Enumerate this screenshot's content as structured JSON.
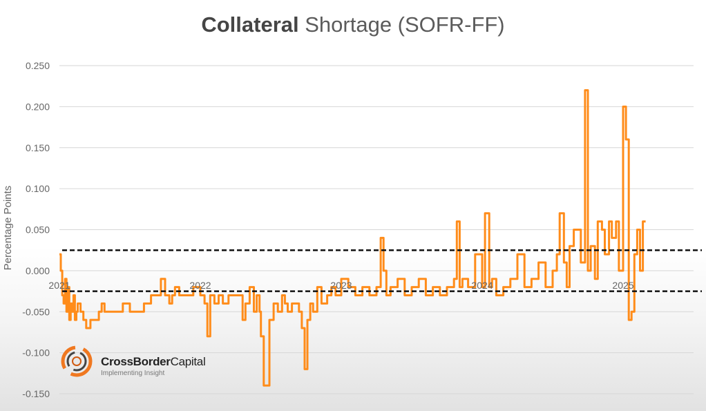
{
  "title_bold": "Collateral",
  "title_rest": "Shortage (SOFR-FF)",
  "logo": {
    "name_bold": "CrossBorder",
    "name_light": "Capital",
    "tagline": "Implementing Insight"
  },
  "chart_data": {
    "type": "line",
    "title": "Collateral Shortage (SOFR-FF)",
    "ylabel": "Percentage Points",
    "xlabel": "",
    "ylim": [
      -0.15,
      0.25
    ],
    "yticks": [
      "0.250",
      "0.200",
      "0.150",
      "0.100",
      "0.050",
      "0.000",
      "-0.050",
      "-0.100",
      "-0.150"
    ],
    "ytick_values": [
      0.25,
      0.2,
      0.15,
      0.1,
      0.05,
      0.0,
      -0.05,
      -0.1,
      -0.15
    ],
    "xlim": [
      2021.0,
      2025.5
    ],
    "year_labels": [
      {
        "label": "2021",
        "x": 2021.0
      },
      {
        "label": "2022",
        "x": 2022.0
      },
      {
        "label": "2023",
        "x": 2023.0
      },
      {
        "label": "2024",
        "x": 2024.0
      },
      {
        "label": "2025",
        "x": 2025.0
      }
    ],
    "reference_lines": [
      0.025,
      -0.025
    ],
    "line_color": "#ff8c1a",
    "grid": true,
    "series": [
      {
        "x": [
          2021.0,
          2021.01,
          2021.02,
          2021.03,
          2021.04,
          2021.05,
          2021.06,
          2021.07,
          2021.08,
          2021.09,
          2021.1,
          2021.11,
          2021.12,
          2021.13,
          2021.15,
          2021.17,
          2021.19,
          2021.22,
          2021.25,
          2021.28,
          2021.3,
          2021.32,
          2021.35,
          2021.4,
          2021.45,
          2021.5,
          2021.55,
          2021.6,
          2021.65,
          2021.7,
          2021.72,
          2021.75,
          2021.78,
          2021.8,
          2021.82,
          2021.85,
          2021.9,
          2021.95,
          2022.0,
          2022.03,
          2022.05,
          2022.07,
          2022.1,
          2022.13,
          2022.16,
          2022.2,
          2022.25,
          2022.28,
          2022.3,
          2022.32,
          2022.35,
          2022.38,
          2022.4,
          2022.42,
          2022.43,
          2022.45,
          2022.47,
          2022.49,
          2022.52,
          2022.55,
          2022.58,
          2022.6,
          2022.62,
          2022.65,
          2022.68,
          2022.7,
          2022.72,
          2022.74,
          2022.76,
          2022.78,
          2022.8,
          2022.83,
          2022.86,
          2022.9,
          2022.93,
          2022.96,
          2023.0,
          2023.05,
          2023.1,
          2023.15,
          2023.2,
          2023.25,
          2023.28,
          2023.3,
          2023.32,
          2023.35,
          2023.4,
          2023.45,
          2023.5,
          2023.55,
          2023.6,
          2023.65,
          2023.7,
          2023.75,
          2023.8,
          2023.82,
          2023.84,
          2023.86,
          2023.9,
          2023.95,
          2024.0,
          2024.02,
          2024.04,
          2024.05,
          2024.07,
          2024.1,
          2024.15,
          2024.2,
          2024.25,
          2024.3,
          2024.35,
          2024.4,
          2024.45,
          2024.5,
          2024.53,
          2024.55,
          2024.58,
          2024.6,
          2024.62,
          2024.65,
          2024.7,
          2024.73,
          2024.75,
          2024.77,
          2024.8,
          2024.82,
          2024.85,
          2024.87,
          2024.9,
          2024.92,
          2024.95,
          2024.97,
          2025.0,
          2025.02,
          2025.04,
          2025.06,
          2025.08,
          2025.1,
          2025.12,
          2025.14,
          2025.16
        ],
        "y": [
          0.02,
          0.0,
          -0.03,
          -0.04,
          -0.01,
          -0.05,
          -0.02,
          -0.06,
          -0.04,
          -0.05,
          -0.03,
          -0.06,
          -0.05,
          -0.04,
          -0.05,
          -0.06,
          -0.07,
          -0.06,
          -0.06,
          -0.05,
          -0.04,
          -0.05,
          -0.05,
          -0.05,
          -0.04,
          -0.05,
          -0.05,
          -0.04,
          -0.03,
          -0.03,
          -0.01,
          -0.03,
          -0.04,
          -0.03,
          -0.02,
          -0.03,
          -0.03,
          -0.02,
          -0.03,
          -0.04,
          -0.08,
          -0.03,
          -0.04,
          -0.03,
          -0.04,
          -0.03,
          -0.03,
          -0.03,
          -0.06,
          -0.04,
          -0.02,
          -0.05,
          -0.03,
          -0.05,
          -0.08,
          -0.14,
          -0.14,
          -0.06,
          -0.04,
          -0.05,
          -0.03,
          -0.04,
          -0.05,
          -0.04,
          -0.04,
          -0.05,
          -0.07,
          -0.12,
          -0.06,
          -0.04,
          -0.05,
          -0.02,
          -0.04,
          -0.03,
          -0.02,
          -0.03,
          -0.01,
          -0.02,
          -0.03,
          -0.02,
          -0.03,
          -0.02,
          0.04,
          0.0,
          -0.03,
          -0.02,
          -0.01,
          -0.03,
          -0.02,
          -0.01,
          -0.03,
          -0.02,
          -0.03,
          -0.02,
          -0.01,
          0.06,
          -0.02,
          -0.01,
          -0.02,
          0.02,
          -0.02,
          0.07,
          0.07,
          -0.02,
          -0.01,
          -0.03,
          -0.02,
          -0.01,
          0.02,
          -0.02,
          -0.01,
          0.01,
          -0.02,
          0.0,
          0.02,
          0.07,
          0.01,
          -0.02,
          0.03,
          0.05,
          0.01,
          0.22,
          0.0,
          0.03,
          -0.01,
          0.06,
          0.05,
          0.02,
          0.06,
          0.04,
          0.06,
          0.0,
          0.2,
          0.16,
          -0.06,
          -0.05,
          0.02,
          0.05,
          0.0,
          0.06,
          0.06
        ]
      }
    ]
  }
}
